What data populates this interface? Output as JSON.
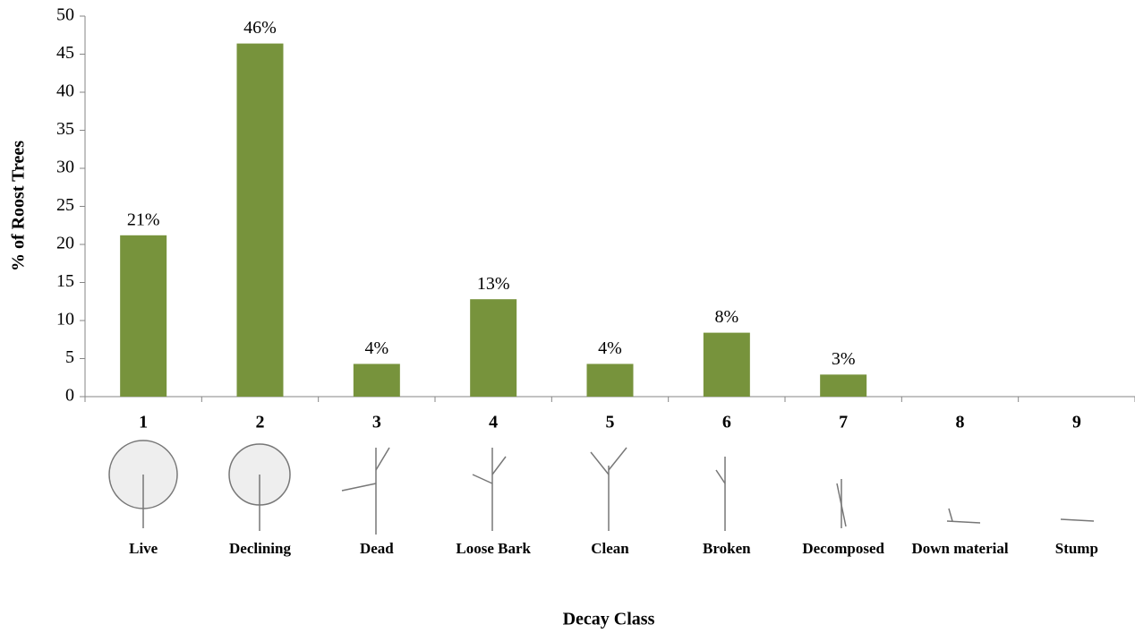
{
  "chart_data": {
    "type": "bar",
    "x_label": "Decay Class",
    "y_label": "% of Roost Trees",
    "categories": [
      "1",
      "2",
      "3",
      "4",
      "5",
      "6",
      "7",
      "8",
      "9"
    ],
    "class_names": [
      "Live",
      "Declining",
      "Dead",
      "Loose Bark",
      "Clean",
      "Broken",
      "Decomposed",
      "Down material",
      "Stump"
    ],
    "values": [
      21.2,
      46.4,
      4.3,
      12.8,
      4.3,
      8.4,
      2.9,
      0,
      0
    ],
    "value_labels": [
      "21%",
      "46%",
      "4%",
      "13%",
      "4%",
      "8%",
      "3%",
      null,
      null
    ],
    "color": "#77933c",
    "ylim": [
      0,
      50
    ],
    "yticks": [
      0,
      5,
      10,
      15,
      20,
      25,
      30,
      35,
      40,
      45,
      50
    ],
    "grid": false
  }
}
